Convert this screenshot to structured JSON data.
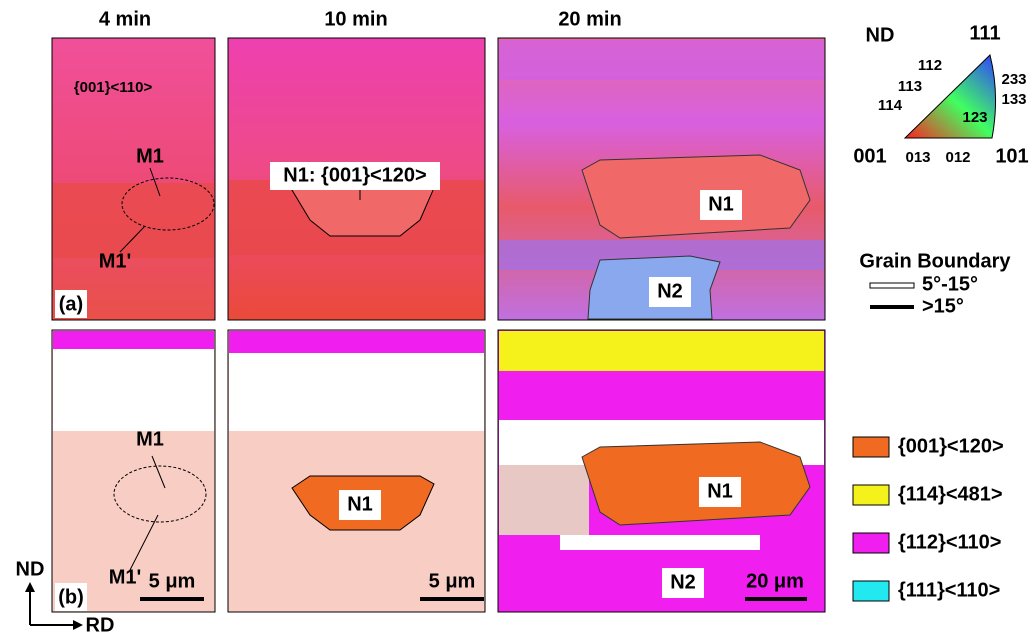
{
  "columns": [
    "4 min",
    "10 min",
    "20 min"
  ],
  "panel_labels": [
    "(a)",
    "(b)"
  ],
  "annotations": {
    "orientation": "{001}<110>",
    "m1_top": "M1",
    "m1p_top": "M1'",
    "n1_top_10": "N1: {001}<120>",
    "n1_top_20": "N1",
    "n2_top_20": "N2",
    "m1_bottom": "M1",
    "m1p_bottom": "M1'",
    "n1_bottom_10": "N1",
    "n1_bottom_20": "N1",
    "n2_bottom_20": "N2"
  },
  "scale_bars": [
    "5 μm",
    "5 μm",
    "20 μm"
  ],
  "axes": {
    "nd": "ND",
    "rd": "RD"
  },
  "ipf": {
    "title": "ND",
    "poles": [
      "111",
      "001",
      "101",
      "112",
      "113",
      "114",
      "233",
      "133",
      "123",
      "013",
      "012"
    ]
  },
  "grain_boundary": {
    "title": "Grain Boundary",
    "low": "5°-15°",
    "high": ">15°"
  },
  "texture_legend": [
    {
      "label": "{001}<120>",
      "color": "#f06a22"
    },
    {
      "label": "{114}<481>",
      "color": "#f4f21a"
    },
    {
      "label": "{112}<110>",
      "color": "#f01ff0"
    },
    {
      "label": "{111}<110>",
      "color": "#22e8f0"
    }
  ]
}
